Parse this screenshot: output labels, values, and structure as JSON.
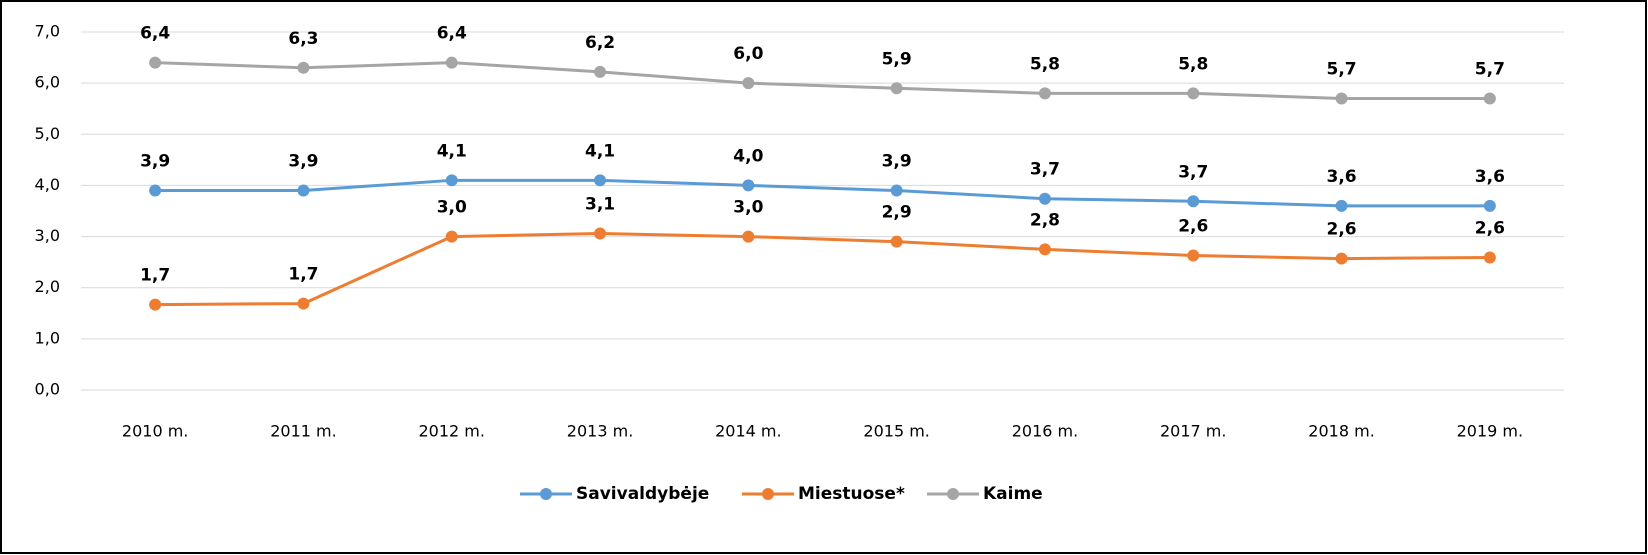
{
  "chart_data": {
    "type": "line",
    "categories": [
      "2010 m.",
      "2011 m.",
      "2012 m.",
      "2013 m.",
      "2014 m.",
      "2015 m.",
      "2016 m.",
      "2017 m.",
      "2018 m.",
      "2019 m."
    ],
    "series": [
      {
        "name": "Savivaldybėje",
        "color": "#5b9bd5",
        "values": [
          3.9,
          3.9,
          4.1,
          4.1,
          4.0,
          3.9,
          3.74,
          3.69,
          3.6,
          3.6
        ],
        "value_labels": [
          "3,9",
          "3,9",
          "4,1",
          "4,1",
          "4,0",
          "3,9",
          "3,7",
          "3,7",
          "3,6",
          "3,6"
        ]
      },
      {
        "name": "Miestuose*",
        "color": "#ed7d31",
        "values": [
          1.67,
          1.69,
          3.0,
          3.06,
          3.0,
          2.9,
          2.75,
          2.63,
          2.57,
          2.59
        ],
        "value_labels": [
          "1,7",
          "1,7",
          "3,0",
          "3,1",
          "3,0",
          "2,9",
          "2,8",
          "2,6",
          "2,6",
          "2,6"
        ]
      },
      {
        "name": "Kaime",
        "color": "#a5a5a5",
        "values": [
          6.4,
          6.3,
          6.4,
          6.22,
          6.0,
          5.9,
          5.8,
          5.8,
          5.7,
          5.7
        ],
        "value_labels": [
          "6,4",
          "6,3",
          "6,4",
          "6,2",
          "6,0",
          "5,9",
          "5,8",
          "5,8",
          "5,7",
          "5,7"
        ]
      }
    ],
    "ylim": [
      0,
      7
    ],
    "yticks": [
      {
        "value": 0,
        "label": "0,0"
      },
      {
        "value": 1,
        "label": "1,0"
      },
      {
        "value": 2,
        "label": "2,0"
      },
      {
        "value": 3,
        "label": "3,0"
      },
      {
        "value": 4,
        "label": "4,0"
      },
      {
        "value": 5,
        "label": "5,0"
      },
      {
        "value": 6,
        "label": "6,0"
      },
      {
        "value": 7,
        "label": "7,0"
      }
    ],
    "grid": true,
    "legend": "bottom"
  }
}
